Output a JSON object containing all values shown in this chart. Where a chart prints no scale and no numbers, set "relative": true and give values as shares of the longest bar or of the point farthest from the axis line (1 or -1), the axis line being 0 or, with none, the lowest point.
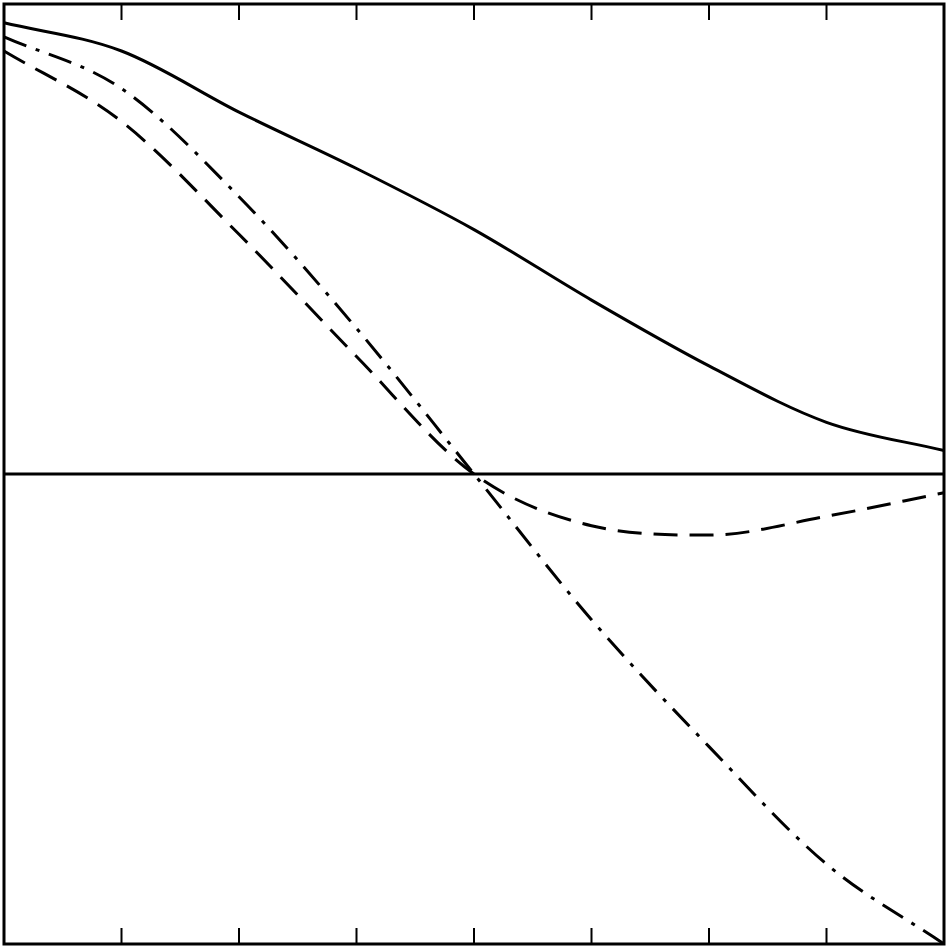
{
  "chart_data": {
    "type": "line",
    "relative": true,
    "categories": [
      null,
      null,
      null,
      null,
      null,
      null,
      null,
      null,
      null
    ],
    "series": [
      {
        "color": "#000000",
        "line_style": "solid",
        "values": [
          0.96,
          0.9,
          0.77,
          0.65,
          0.52,
          0.37,
          0.23,
          0.11,
          0.05
        ]
      },
      {
        "color": "#000000",
        "line_style": "dashed",
        "values": [
          0.9,
          0.75,
          0.51,
          0.25,
          0,
          -0.11,
          -0.13,
          -0.09,
          -0.04
        ]
      },
      {
        "color": "#000000",
        "line_style": "dashdot",
        "values": [
          0.93,
          0.82,
          0.59,
          0.31,
          0,
          -0.31,
          -0.58,
          -0.83,
          -1
        ]
      }
    ],
    "grid": false,
    "legend": false,
    "marker": "none",
    "tick_labels": false
  }
}
